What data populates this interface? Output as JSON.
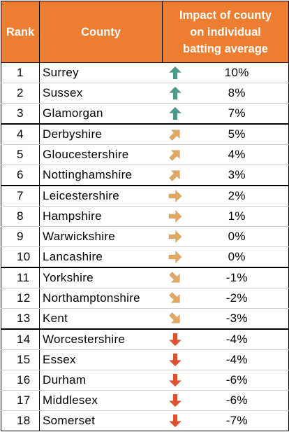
{
  "headers": {
    "rank": "Rank",
    "county": "County",
    "impact_line1": "Impact of county",
    "impact_line2": "on individual",
    "impact_line3": "batting average"
  },
  "colors": {
    "header_bg": "#ed7d31",
    "up": "#4a9a8e",
    "up_right": "#e2a863",
    "right": "#e2a863",
    "down_right": "#e2a863",
    "down": "#e0502f"
  },
  "rows": [
    {
      "rank": "1",
      "county": "Surrey",
      "impact": "10%",
      "arrow": "up-arrow-icon"
    },
    {
      "rank": "2",
      "county": "Sussex",
      "impact": "8%",
      "arrow": "up-arrow-icon"
    },
    {
      "rank": "3",
      "county": "Glamorgan",
      "impact": "7%",
      "arrow": "up-arrow-icon"
    },
    {
      "rank": "4",
      "county": "Derbyshire",
      "impact": "5%",
      "arrow": "up-right-arrow-icon"
    },
    {
      "rank": "5",
      "county": "Gloucestershire",
      "impact": "4%",
      "arrow": "up-right-arrow-icon"
    },
    {
      "rank": "6",
      "county": "Nottinghamshire",
      "impact": "3%",
      "arrow": "up-right-arrow-icon"
    },
    {
      "rank": "7",
      "county": "Leicestershire",
      "impact": "2%",
      "arrow": "right-arrow-icon"
    },
    {
      "rank": "8",
      "county": "Hampshire",
      "impact": "1%",
      "arrow": "right-arrow-icon"
    },
    {
      "rank": "9",
      "county": "Warwickshire",
      "impact": "0%",
      "arrow": "right-arrow-icon"
    },
    {
      "rank": "10",
      "county": "Lancashire",
      "impact": "0%",
      "arrow": "right-arrow-icon"
    },
    {
      "rank": "11",
      "county": "Yorkshire",
      "impact": "-1%",
      "arrow": "down-right-arrow-icon"
    },
    {
      "rank": "12",
      "county": "Northamptonshire",
      "impact": "-2%",
      "arrow": "down-right-arrow-icon"
    },
    {
      "rank": "13",
      "county": "Kent",
      "impact": "-3%",
      "arrow": "down-right-arrow-icon"
    },
    {
      "rank": "14",
      "county": "Worcestershire",
      "impact": "-4%",
      "arrow": "down-arrow-icon"
    },
    {
      "rank": "15",
      "county": "Essex",
      "impact": "-4%",
      "arrow": "down-arrow-icon"
    },
    {
      "rank": "16",
      "county": "Durham",
      "impact": "-6%",
      "arrow": "down-arrow-icon"
    },
    {
      "rank": "17",
      "county": "Middlesex",
      "impact": "-6%",
      "arrow": "down-arrow-icon"
    },
    {
      "rank": "18",
      "county": "Somerset",
      "impact": "-7%",
      "arrow": "down-arrow-icon"
    }
  ]
}
